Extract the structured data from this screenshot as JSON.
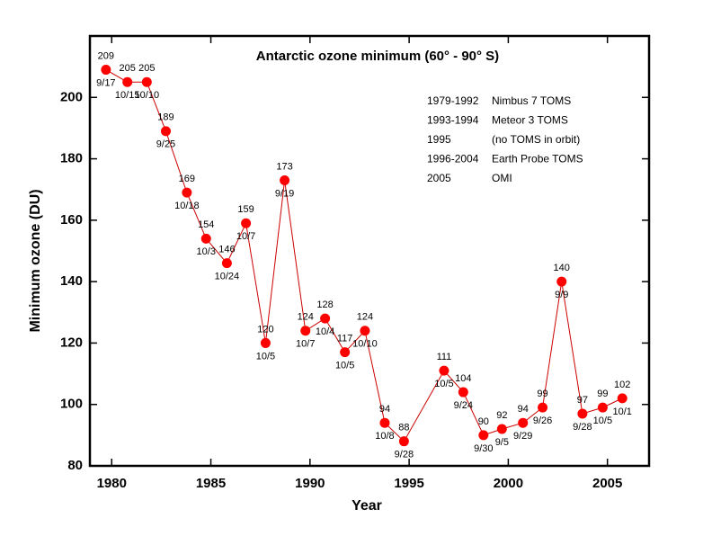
{
  "chart_data": {
    "type": "line",
    "title": "Antarctic ozone minimum (60° - 90° S)",
    "x_label": "Year",
    "y_label": "Minimum ozone (DU)",
    "x": [
      1979.71,
      1980.79,
      1981.77,
      1982.73,
      1983.79,
      1984.76,
      1985.81,
      1986.77,
      1987.76,
      1988.72,
      1989.77,
      1990.76,
      1991.76,
      1992.77,
      1993.77,
      1994.74,
      1996.76,
      1997.73,
      1998.75,
      1999.68,
      2000.74,
      2001.73,
      2002.69,
      2003.74,
      2004.76,
      2005.75
    ],
    "values": [
      209,
      205,
      205,
      189,
      169,
      154,
      146,
      159,
      120,
      173,
      124,
      128,
      117,
      124,
      94,
      88,
      111,
      104,
      90,
      92,
      94,
      99,
      140,
      97,
      99,
      102
    ],
    "dates": [
      "9/17",
      "10/15",
      "10/10",
      "9/25",
      "10/18",
      "10/3",
      "10/24",
      "10/7",
      "10/5",
      "9/19",
      "10/7",
      "10/4",
      "10/5",
      "10/10",
      "10/8",
      "9/28",
      "10/5",
      "9/24",
      "9/30",
      "9/5",
      "9/29",
      "9/26",
      "9/9",
      "9/28",
      "10/5",
      "10/1"
    ],
    "color": "#ff0000",
    "line_color": "#cc0000",
    "xlim": [
      1978.9,
      2007.1
    ],
    "xticks": [
      1980,
      1985,
      1990,
      1995,
      2000,
      2005
    ],
    "ylim": [
      80,
      220
    ],
    "yticks": [
      80,
      100,
      120,
      140,
      160,
      180,
      200
    ],
    "instruments": [
      [
        "1979-1992",
        "Nimbus 7 TOMS"
      ],
      [
        "1993-1994",
        "Meteor 3 TOMS"
      ],
      [
        "1995",
        "(no TOMS in orbit)"
      ],
      [
        "1996-2004",
        "Earth Probe TOMS"
      ],
      [
        "2005",
        "OMI"
      ]
    ]
  }
}
